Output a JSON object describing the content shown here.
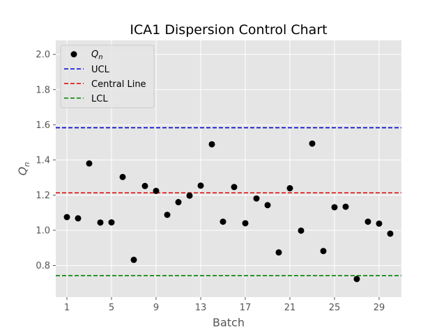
{
  "chart_data": {
    "type": "scatter",
    "title": "ICA1 Dispersion Control Chart",
    "xlabel": "Batch",
    "ylabel": "Q",
    "ylabel_subscript": "n",
    "xlim": [
      0,
      31
    ],
    "ylim": [
      0.62,
      2.08
    ],
    "xticks": [
      1,
      5,
      9,
      13,
      17,
      21,
      25,
      29
    ],
    "yticks": [
      0.8,
      1.0,
      1.2,
      1.4,
      1.6,
      1.8,
      2.0
    ],
    "ytick_labels": [
      "0.8",
      "1.0",
      "1.2",
      "1.4",
      "1.6",
      "1.8",
      "2.0"
    ],
    "grid": true,
    "legend_position": "upper-left",
    "series": [
      {
        "name": "Q",
        "name_subscript": "n",
        "color": "#000000",
        "x": [
          1,
          2,
          3,
          4,
          5,
          6,
          7,
          8,
          9,
          10,
          11,
          12,
          13,
          14,
          15,
          16,
          17,
          18,
          19,
          20,
          21,
          22,
          23,
          24,
          25,
          26,
          27,
          28,
          29,
          30
        ],
        "y": [
          1.075,
          1.068,
          1.38,
          1.044,
          1.045,
          1.303,
          0.832,
          1.252,
          1.224,
          1.088,
          1.16,
          1.197,
          1.254,
          1.489,
          1.049,
          1.246,
          1.04,
          1.181,
          1.143,
          0.874,
          1.239,
          0.998,
          1.493,
          0.882,
          1.131,
          1.134,
          0.723,
          1.049,
          1.038,
          0.981
        ]
      }
    ],
    "reference_lines": [
      {
        "name": "UCL",
        "value": 1.583,
        "color": "#0000cc"
      },
      {
        "name": "Central Line",
        "value": 1.213,
        "color": "#dd0000"
      },
      {
        "name": "LCL",
        "value": 0.742,
        "color": "#008000"
      }
    ]
  }
}
